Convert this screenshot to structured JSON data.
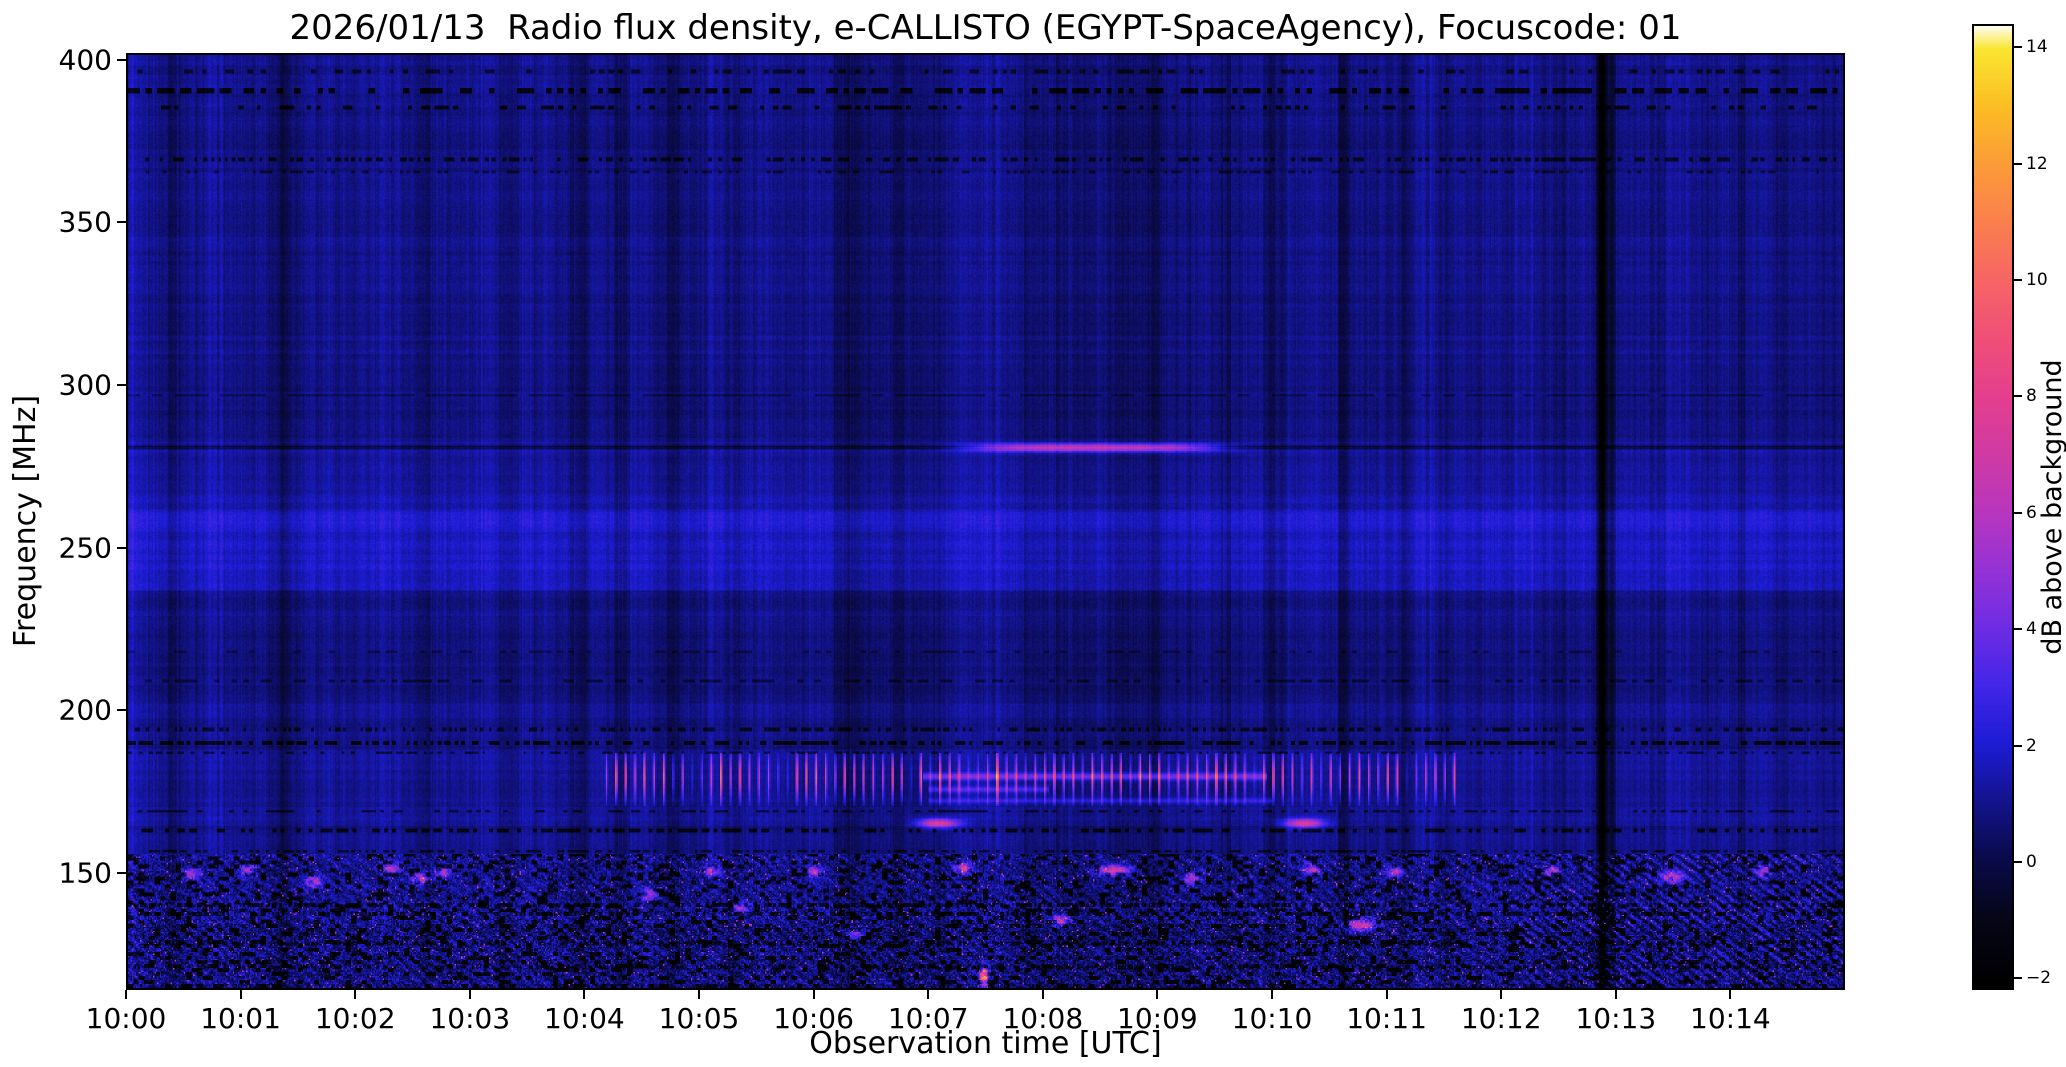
{
  "chart_data": {
    "type": "heatmap",
    "title": "2026/01/13  Radio flux density, e-CALLISTO (EGYPT-SpaceAgency), Focuscode: 01",
    "xlabel": "Observation time [UTC]",
    "ylabel": "Frequency [MHz]",
    "colorbar_label": "dB above background",
    "x_axis": {
      "start_utc": "10:00",
      "end_utc": "10:15",
      "duration_minutes": 15,
      "tick_labels": [
        "10:00",
        "10:01",
        "10:02",
        "10:03",
        "10:04",
        "10:05",
        "10:06",
        "10:07",
        "10:08",
        "10:09",
        "10:10",
        "10:11",
        "10:12",
        "10:13",
        "10:14"
      ]
    },
    "y_axis": {
      "min_mhz": 114,
      "max_mhz": 402,
      "ticks": [
        400,
        350,
        300,
        250,
        200,
        150
      ]
    },
    "value_axis": {
      "min_db": -2.2,
      "max_db": 14.4,
      "ticks": [
        -2,
        0,
        2,
        4,
        6,
        8,
        10,
        12,
        14
      ],
      "tick_labels": [
        "−2",
        "0",
        "2",
        "4",
        "6",
        "8",
        "10",
        "12",
        "14"
      ]
    },
    "colormap": [
      {
        "u": 0.0,
        "c": "#000000"
      },
      {
        "u": 0.0723,
        "c": "#060618"
      },
      {
        "u": 0.1325,
        "c": "#0a0a4a"
      },
      {
        "u": 0.1928,
        "c": "#13138c"
      },
      {
        "u": 0.253,
        "c": "#1c1cd4"
      },
      {
        "u": 0.3133,
        "c": "#4326e8"
      },
      {
        "u": 0.3735,
        "c": "#6e2ce4"
      },
      {
        "u": 0.4337,
        "c": "#9532d6"
      },
      {
        "u": 0.494,
        "c": "#b836be"
      },
      {
        "u": 0.5542,
        "c": "#d03aa4"
      },
      {
        "u": 0.6145,
        "c": "#e43f8e"
      },
      {
        "u": 0.6747,
        "c": "#ef4f78"
      },
      {
        "u": 0.7349,
        "c": "#f66565"
      },
      {
        "u": 0.7952,
        "c": "#fa7f4e"
      },
      {
        "u": 0.8554,
        "c": "#fb9b38"
      },
      {
        "u": 0.9157,
        "c": "#fcbd24"
      },
      {
        "u": 0.9759,
        "c": "#f9e630"
      },
      {
        "u": 1.0,
        "c": "#fffdf0"
      }
    ],
    "features": {
      "bands": [
        [
          390,
          402.5,
          0.95
        ],
        [
          365,
          390,
          0.85
        ],
        [
          300,
          365,
          0.95
        ],
        [
          283,
          300,
          0.85
        ],
        [
          262,
          283,
          1.25
        ],
        [
          237,
          262,
          1.6
        ],
        [
          205,
          237,
          0.75
        ],
        [
          196,
          205,
          1.0
        ],
        [
          188,
          196,
          0.85
        ],
        [
          166,
          188,
          1.15
        ],
        [
          154,
          166,
          0.95
        ],
        [
          134,
          154,
          0.85
        ],
        [
          113,
          134,
          0.6
        ]
      ],
      "stripes": {
        "fine": 0.55,
        "med": 0.45,
        "coarse": 0.5,
        "low_factor": 0.5
      },
      "dark_rows": [
        {
          "f": 397,
          "w": 1.2,
          "amp": -1.4,
          "duty": 0.3,
          "seg": 0.04
        },
        {
          "f": 391,
          "w": 1.6,
          "amp": -2.4,
          "duty": 0.5,
          "seg": 0.05
        },
        {
          "f": 386,
          "w": 1.2,
          "amp": -2.0,
          "duty": 0.35,
          "seg": 0.04
        },
        {
          "f": 370,
          "w": 1.1,
          "amp": -1.8,
          "duty": 0.45,
          "seg": 0.03
        },
        {
          "f": 366,
          "w": 0.9,
          "amp": -1.2,
          "duty": 0.3,
          "seg": 0.03
        },
        {
          "f": 297,
          "w": 0.8,
          "amp": -0.8,
          "duty": 0.8,
          "seg": 0.1
        },
        {
          "f": 281,
          "w": 0.9,
          "amp": -1.3,
          "duty": 1.0,
          "seg": 1.0
        },
        {
          "f": 218,
          "w": 0.9,
          "amp": -0.9,
          "duty": 0.3,
          "seg": 0.05
        },
        {
          "f": 209,
          "w": 1.0,
          "amp": -1.2,
          "duty": 0.4,
          "seg": 0.05
        },
        {
          "f": 194,
          "w": 0.9,
          "amp": -1.7,
          "duty": 0.45,
          "seg": 0.025
        },
        {
          "f": 190,
          "w": 1.2,
          "amp": -2.2,
          "duty": 0.55,
          "seg": 0.03
        },
        {
          "f": 186.8,
          "w": 0.8,
          "amp": -1.5,
          "duty": 0.4,
          "seg": 0.03
        },
        {
          "f": 168.8,
          "w": 0.9,
          "amp": -1.4,
          "duty": 0.4,
          "seg": 0.04
        },
        {
          "f": 163,
          "w": 1.2,
          "amp": -2.0,
          "duty": 0.5,
          "seg": 0.035
        },
        {
          "f": 156.5,
          "w": 1.0,
          "amp": -1.5,
          "duty": 0.45,
          "seg": 0.03
        },
        {
          "f": 140,
          "w": 1.3,
          "amp": -2.2,
          "duty": 0.55,
          "seg": 0.02
        },
        {
          "f": 137,
          "w": 1.1,
          "amp": -1.8,
          "duty": 0.5,
          "seg": 0.02
        },
        {
          "f": 128,
          "w": 1.2,
          "amp": -1.8,
          "duty": 0.5,
          "seg": 0.02
        },
        {
          "f": 120.5,
          "w": 1.2,
          "amp": -1.8,
          "duty": 0.5,
          "seg": 0.02
        }
      ],
      "bright_rows": [
        {
          "f": 259,
          "w": 2.2,
          "amp": 0.65
        },
        {
          "f": 251,
          "w": 1.8,
          "amp": 0.5
        },
        {
          "f": 244,
          "w": 1.5,
          "amp": 0.35
        },
        {
          "f": 228,
          "w": 2.0,
          "amp": 0.35
        },
        {
          "f": 265,
          "w": 1.2,
          "amp": 0.3
        }
      ],
      "vertical_marks": [
        {
          "t": 0.03,
          "w": 0.02,
          "amp": 0.8
        },
        {
          "t": 0.38,
          "w": 0.05,
          "amp": -0.9
        },
        {
          "t": 1.34,
          "w": 0.04,
          "amp": -1.1
        },
        {
          "t": 2.6,
          "w": 0.05,
          "amp": -0.5
        },
        {
          "t": 3.3,
          "w": 0.04,
          "amp": -0.5
        },
        {
          "t": 3.95,
          "w": 0.07,
          "amp": -0.8
        },
        {
          "t": 4.3,
          "w": 0.06,
          "amp": -0.7
        },
        {
          "t": 4.75,
          "w": 0.05,
          "amp": -0.6
        },
        {
          "t": 5.25,
          "w": 0.05,
          "amp": -0.6
        },
        {
          "t": 6.3,
          "w": 0.09,
          "amp": -0.75
        },
        {
          "t": 6.75,
          "w": 0.07,
          "amp": -0.7
        },
        {
          "t": 7.1,
          "w": 0.05,
          "amp": -0.6
        },
        {
          "t": 7.85,
          "w": 0.06,
          "amp": -0.5
        },
        {
          "t": 8.25,
          "w": 0.28,
          "amp": -0.45
        },
        {
          "t": 8.95,
          "w": 0.22,
          "amp": -0.45
        },
        {
          "t": 9.6,
          "w": 0.05,
          "amp": -0.5
        },
        {
          "t": 10.0,
          "w": 0.05,
          "amp": -0.55
        },
        {
          "t": 10.63,
          "w": 0.05,
          "amp": -0.9
        },
        {
          "t": 11.15,
          "w": 0.04,
          "amp": -0.6
        },
        {
          "t": 11.52,
          "w": 0.04,
          "amp": -0.6
        },
        {
          "t": 12.89,
          "w": 0.035,
          "amp": -3.0
        },
        {
          "t": 12.98,
          "w": 0.02,
          "amp": -1.2
        },
        {
          "t": 14.12,
          "w": 0.04,
          "amp": -0.55
        }
      ],
      "rfi_ticks": {
        "t0": 4.15,
        "t1": 11.62,
        "f0": 170.5,
        "f1": 187,
        "f_peak": 179.5,
        "f_sigma": 4.8,
        "period_s": 5.0,
        "duty": 0.32,
        "peak_db": 9.5
      },
      "transient_280": {
        "t0": 6.9,
        "t1": 10.1,
        "t_peak": 8.45,
        "t_sigma": 0.9,
        "f": 281,
        "f_sigma": 0.8,
        "peak_db": 7.0
      },
      "purple_streaks": [
        {
          "t0": 6.95,
          "t1": 9.95,
          "f": 179.5,
          "w": 0.8,
          "amp": 3.2
        },
        {
          "t0": 7.0,
          "t1": 8.05,
          "f": 175.5,
          "w": 0.7,
          "amp": 2.2
        },
        {
          "t0": 7.0,
          "t1": 10.0,
          "f": 172.0,
          "w": 0.6,
          "amp": 1.5
        }
      ],
      "noise_region": {
        "f_top": 155.5,
        "speckle_amp": 2.6,
        "speckle_bias": 0.42,
        "black_prob": 0.22,
        "hot_prob": 0.985,
        "wave_amp": 0.45,
        "right_wave_t0": 12.2,
        "right_wave_amp": 0.8,
        "deep_f": 136,
        "deep_amp": 1.8
      },
      "bright_specks": [
        {
          "t": 0.55,
          "f": 149.5,
          "db": 4.5
        },
        {
          "t": 1.05,
          "f": 150.5,
          "db": 5
        },
        {
          "t": 1.62,
          "f": 147,
          "db": 5.5
        },
        {
          "t": 2.3,
          "f": 151,
          "db": 5
        },
        {
          "t": 2.55,
          "f": 148,
          "db": 6
        },
        {
          "t": 2.75,
          "f": 150,
          "db": 4.5
        },
        {
          "t": 4.55,
          "f": 143,
          "db": 5
        },
        {
          "t": 5.1,
          "f": 150.5,
          "db": 6
        },
        {
          "t": 5.35,
          "f": 139,
          "db": 4.5
        },
        {
          "t": 6.0,
          "f": 150,
          "db": 5
        },
        {
          "t": 6.35,
          "f": 131,
          "db": 5
        },
        {
          "t": 7.08,
          "f": 165,
          "db": 7,
          "w": 0.12,
          "h": 1.0
        },
        {
          "t": 7.3,
          "f": 151,
          "db": 6.5
        },
        {
          "t": 7.48,
          "f": 118,
          "db": 11,
          "w": 0.025,
          "h": 2.2
        },
        {
          "t": 8.15,
          "f": 135,
          "db": 6
        },
        {
          "t": 8.62,
          "f": 150.5,
          "db": 7,
          "w": 0.1
        },
        {
          "t": 9.3,
          "f": 148,
          "db": 5
        },
        {
          "t": 10.28,
          "f": 165,
          "db": 6.5,
          "w": 0.12,
          "h": 1.0
        },
        {
          "t": 10.35,
          "f": 151,
          "db": 6
        },
        {
          "t": 10.78,
          "f": 133.5,
          "db": 6.5,
          "w": 0.09
        },
        {
          "t": 11.08,
          "f": 150,
          "db": 5.5
        },
        {
          "t": 12.45,
          "f": 150.5,
          "db": 5
        },
        {
          "t": 13.5,
          "f": 148.5,
          "db": 5.5,
          "w": 0.08
        },
        {
          "t": 14.3,
          "f": 150,
          "db": 4.5
        }
      ]
    }
  }
}
